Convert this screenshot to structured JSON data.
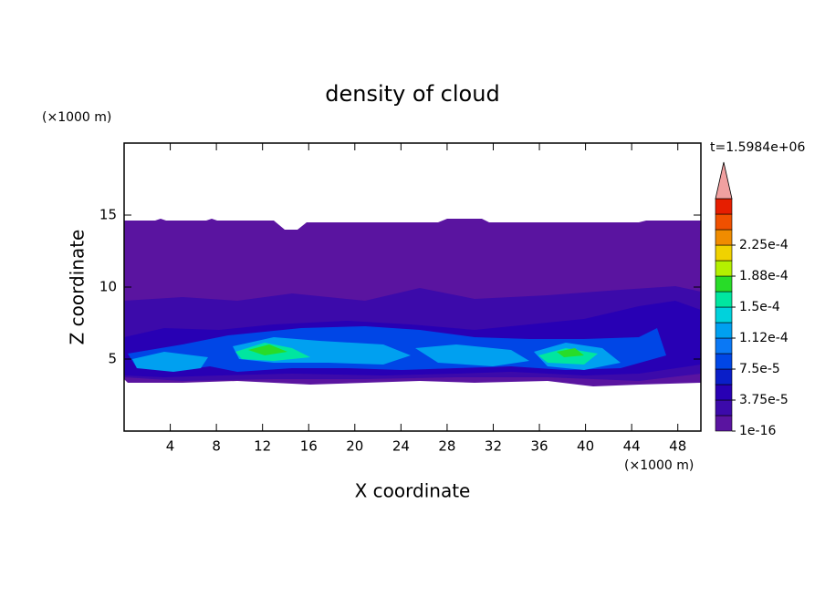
{
  "chart_data": {
    "type": "contour",
    "title": "density of cloud",
    "xlabel": "X coordinate",
    "ylabel": "Z coordinate",
    "x_unit": "(×1000 m)",
    "y_unit": "(×1000 m)",
    "time_label": "t=1.5984e+06",
    "xlim": [
      0,
      50
    ],
    "ylim": [
      0,
      20
    ],
    "xticks": [
      4,
      8,
      12,
      16,
      20,
      24,
      28,
      32,
      36,
      40,
      44,
      48
    ],
    "yticks": [
      5,
      10,
      15
    ],
    "colorbar_ticks": [
      {
        "value": 1e-16,
        "label": "1e-16"
      },
      {
        "value": 3.75e-05,
        "label": "3.75e-5"
      },
      {
        "value": 7.5e-05,
        "label": "7.5e-5"
      },
      {
        "value": 0.000112,
        "label": "1.12e-4"
      },
      {
        "value": 0.00015,
        "label": "1.5e-4"
      },
      {
        "value": 0.000188,
        "label": "1.88e-4"
      },
      {
        "value": 0.000225,
        "label": "2.25e-4"
      }
    ],
    "colors": [
      "#5a14a0",
      "#3c0aaa",
      "#2800b4",
      "#0a1ec8",
      "#0046e6",
      "#0a78f5",
      "#00a0f0",
      "#00d2dc",
      "#00e6a0",
      "#28dc28",
      "#b4f000",
      "#f0d200",
      "#f08c00",
      "#f05000",
      "#e61e00"
    ],
    "overflow_color": "#f0a0a0"
  }
}
